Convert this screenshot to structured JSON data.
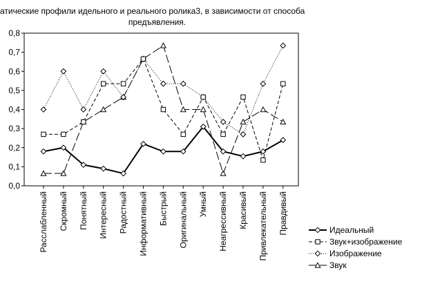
{
  "chart_data": {
    "type": "line",
    "title_line1": "атические профили идельного и реального ролика3, в зависимости от способа",
    "title_line2": "предъявления.",
    "xlabel": "",
    "ylabel": "",
    "categories": [
      "Расслабленный",
      "Скромный",
      "Понятный",
      "Интересный",
      "Радостный",
      "Информативный",
      "Быстрый",
      "Оригинальный",
      "Умный",
      "Неагрессивный",
      "Красивый",
      "Привлекательный",
      "Правдивый"
    ],
    "ylim": [
      0.0,
      0.8
    ],
    "yticks": [
      "0,0",
      "0,1",
      "0,2",
      "0,3",
      "0,4",
      "0,5",
      "0,6",
      "0,7",
      "0,8"
    ],
    "grid": false,
    "legend_position": "bottom-right",
    "series": [
      {
        "name": "Идеальный",
        "style": "solid-bold",
        "marker": "diamond",
        "values": [
          0.18,
          0.2,
          0.11,
          0.09,
          0.065,
          0.22,
          0.18,
          0.18,
          0.31,
          0.18,
          0.155,
          0.18,
          0.24
        ]
      },
      {
        "name": "Звук+изображение",
        "style": "dashed",
        "marker": "square",
        "values": [
          0.27,
          0.27,
          0.335,
          0.535,
          0.535,
          0.665,
          0.4,
          0.27,
          0.465,
          0.27,
          0.465,
          0.135,
          0.535
        ]
      },
      {
        "name": "Изображение",
        "style": "dotted",
        "marker": "diamond",
        "values": [
          0.4,
          0.6,
          0.4,
          0.6,
          0.465,
          0.665,
          0.535,
          0.535,
          0.465,
          0.335,
          0.27,
          0.535,
          0.735
        ]
      },
      {
        "name": "Звук",
        "style": "long-dash",
        "marker": "triangle",
        "values": [
          0.065,
          0.065,
          0.335,
          0.4,
          0.465,
          0.665,
          0.735,
          0.4,
          0.4,
          0.065,
          0.335,
          0.4,
          0.335
        ]
      }
    ]
  }
}
